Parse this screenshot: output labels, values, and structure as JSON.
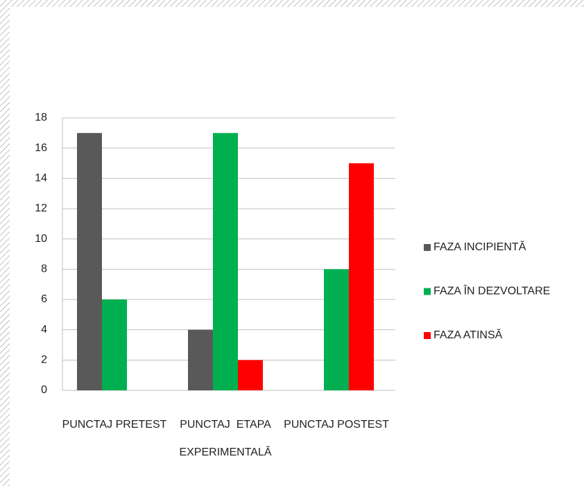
{
  "chart_data": {
    "type": "bar",
    "categories": [
      "PUNCTAJ PRETEST",
      "PUNCTAJ  ETAPA EXPERIMENTALĂ",
      "PUNCTAJ POSTEST"
    ],
    "series": [
      {
        "name": "FAZA INCIPIENTĂ",
        "color": "#595959",
        "values": [
          17,
          4,
          0
        ]
      },
      {
        "name": "FAZA ÎN DEZVOLTARE",
        "color": "#00b050",
        "values": [
          6,
          17,
          8
        ]
      },
      {
        "name": "FAZA ATINSĂ",
        "color": "#ff0000",
        "values": [
          0,
          2,
          15
        ]
      }
    ],
    "ylim": [
      0,
      18
    ],
    "yticks": [
      0,
      2,
      4,
      6,
      8,
      10,
      12,
      14,
      16,
      18
    ],
    "grid": true,
    "legend": "right"
  }
}
